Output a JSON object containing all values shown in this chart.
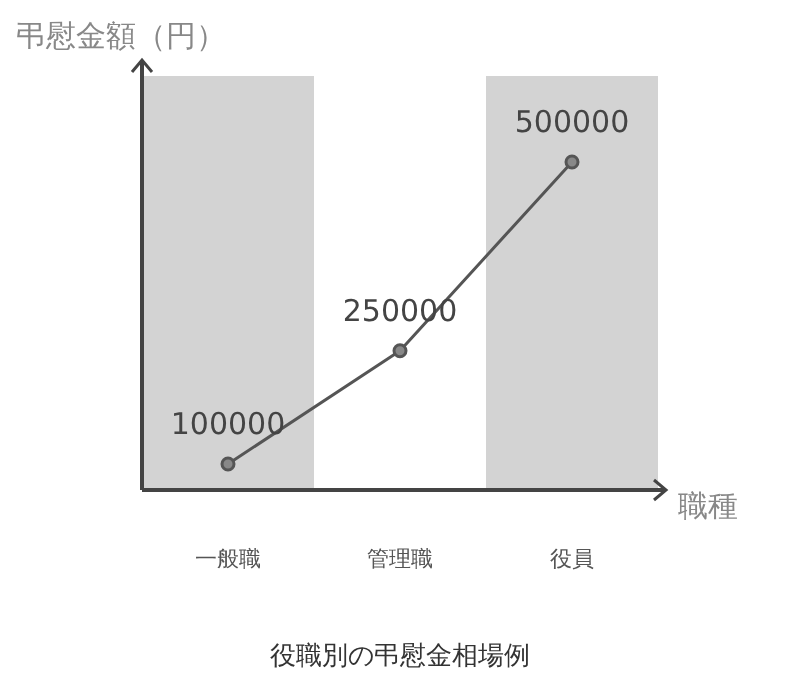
{
  "chart_data": {
    "type": "line",
    "title": "役職別の弔慰金相場例",
    "xlabel": "職種",
    "ylabel": "弔慰金額（円）",
    "categories": [
      "一般職",
      "管理職",
      "役員"
    ],
    "series": [
      {
        "color": "#555555",
        "values": [
          100000,
          250000,
          500000
        ]
      }
    ],
    "data_labels": true,
    "marker": "circle",
    "line_style": "solid",
    "bands": [
      {
        "axis": "x",
        "from": "一般職",
        "to": "一般職",
        "color": "#d3d3d3"
      },
      {
        "axis": "x",
        "from": "役員",
        "to": "役員",
        "color": "#d3d3d3"
      }
    ]
  }
}
